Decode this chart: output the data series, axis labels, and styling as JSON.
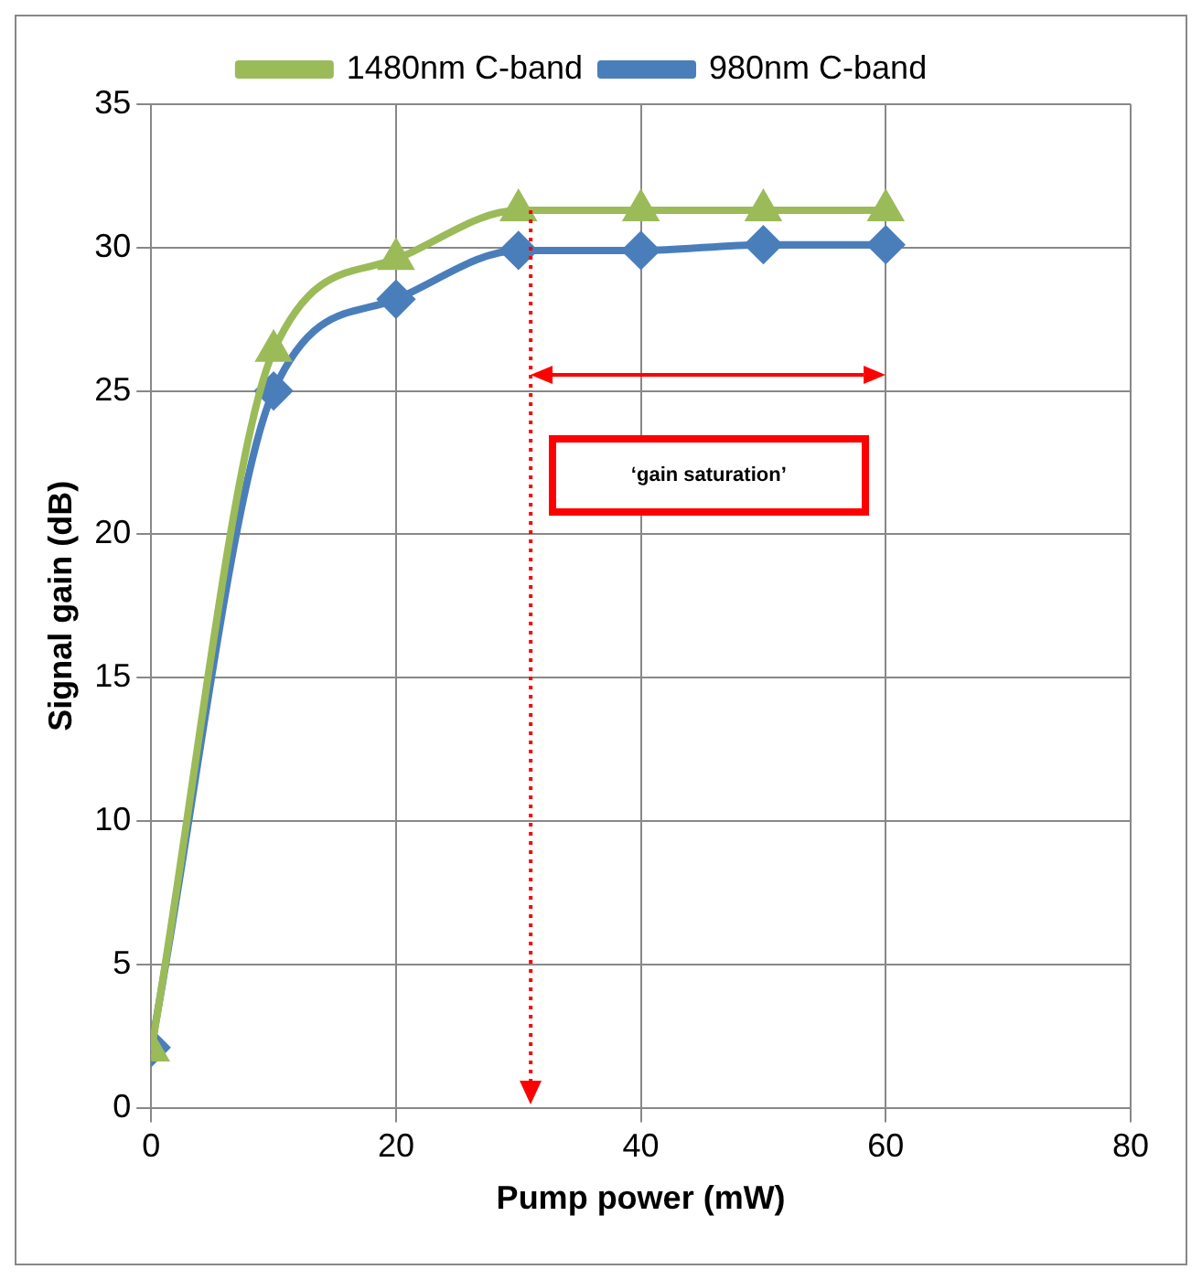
{
  "chart_data": {
    "type": "line",
    "xlabel": "Pump power (mW)",
    "ylabel": "Signal gain (dB)",
    "x": [
      0,
      10,
      20,
      30,
      40,
      50,
      60
    ],
    "series": [
      {
        "name": "980nm C-band",
        "color": "#4a7ebb",
        "marker": "diamond",
        "values": [
          2.1,
          25,
          28.2,
          29.9,
          29.9,
          30.1,
          30.1
        ]
      },
      {
        "name": "1480nm C-band",
        "color": "#9bbb59",
        "marker": "triangle",
        "values": [
          2.0,
          26.4,
          29.6,
          31.3,
          31.3,
          31.3,
          31.3
        ]
      }
    ],
    "xlim": [
      0,
      80
    ],
    "xticks": [
      0,
      20,
      40,
      60,
      80
    ],
    "ylim": [
      0,
      35
    ],
    "yticks": [
      0,
      5,
      10,
      15,
      20,
      25,
      30,
      35
    ],
    "grid": true,
    "legend": "top",
    "ref_lines": [
      {
        "axis": "x",
        "value": 31,
        "label": null,
        "color": "#ff0000",
        "line_style": "dotted"
      }
    ],
    "annotations": [
      "‘gain saturation’"
    ]
  }
}
